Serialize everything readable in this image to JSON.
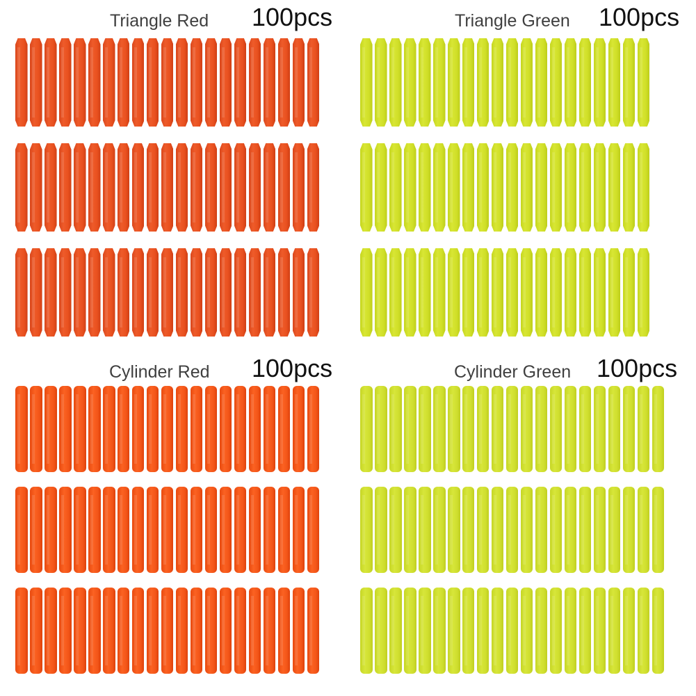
{
  "panels": [
    {
      "id": "triangle-red",
      "label": "Triangle Red",
      "count": "100pcs",
      "shape": "triangle",
      "color": "#e9511f",
      "rows": 3,
      "darts_per_row": 21
    },
    {
      "id": "triangle-green",
      "label": "Triangle Green",
      "count": "100pcs",
      "shape": "triangle",
      "color": "#d0df28",
      "rows": 3,
      "darts_per_row": 20
    },
    {
      "id": "cylinder-red",
      "label": "Cylinder Red",
      "count": "100pcs",
      "shape": "cylinder",
      "color": "#f35518",
      "rows": 3,
      "darts_per_row": 21
    },
    {
      "id": "cylinder-green",
      "label": "Cylinder Green",
      "count": "100pcs",
      "shape": "cylinder",
      "color": "#cfde2e",
      "rows": 3,
      "darts_per_row": 21
    }
  ]
}
